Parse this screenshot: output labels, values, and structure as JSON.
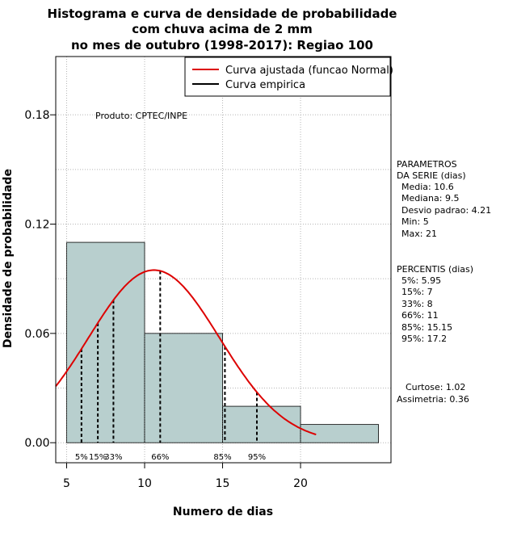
{
  "chart_data": {
    "type": "histogram",
    "title": [
      "Histograma e curva de densidade de probabilidade",
      "com chuva acima de 2 mm",
      "no mes de outubro (1998-2017): Regiao 100"
    ],
    "xlabel": "Numero de dias",
    "ylabel": "Densidade de probabilidade",
    "xlim": [
      4.3,
      25.8
    ],
    "ylim": [
      -0.011,
      0.212
    ],
    "xticks": [
      5,
      10,
      15,
      20
    ],
    "yticks": [
      0.0,
      0.06,
      0.12,
      0.18
    ],
    "ytick_labels": [
      "0.00",
      "0.06",
      "0.12",
      "0.18"
    ],
    "bins": [
      {
        "from": 5,
        "to": 10,
        "density": 0.11
      },
      {
        "from": 10,
        "to": 15,
        "density": 0.06
      },
      {
        "from": 15,
        "to": 20,
        "density": 0.02
      },
      {
        "from": 20,
        "to": 25,
        "density": 0.01
      }
    ],
    "bar_color": "#b8cfce",
    "curve_color": "#dd0000",
    "normal_fit": {
      "mean": 10.6,
      "sd": 4.21,
      "x_from": 4.3,
      "x_to": 21
    },
    "percentile_lines": [
      {
        "label": "5%",
        "x": 5.95
      },
      {
        "label": "15%",
        "x": 7
      },
      {
        "label": "33%",
        "x": 8
      },
      {
        "label": "66%",
        "x": 11
      },
      {
        "label": "85%",
        "x": 15.15
      },
      {
        "label": "95%",
        "x": 17.2
      }
    ],
    "percentile_axis_labels": [
      {
        "text": "5%",
        "x": 5.95
      },
      {
        "text": "15%",
        "x": 7.0
      },
      {
        "text": "33%",
        "x": 8.0
      },
      {
        "text": "66%",
        "x": 11.0
      },
      {
        "text": "85%",
        "x": 15.0
      },
      {
        "text": "95%",
        "x": 17.2
      }
    ],
    "legend": [
      {
        "label": "Curva ajustada (funcao Normal)",
        "color": "#dd0000"
      },
      {
        "label": "Curva empirica",
        "color": "#000000"
      }
    ],
    "annotation": "Produto: CPTEC/INPE"
  },
  "parametros": {
    "header": [
      "PARAMETROS",
      "DA SERIE (dias)"
    ],
    "lines": [
      "Media: 10.6",
      "Mediana: 9.5",
      "Desvio padrao: 4.21",
      "Min: 5",
      "Max: 21"
    ]
  },
  "percentis": {
    "header": "PERCENTIS (dias)",
    "lines": [
      "5%: 5.95",
      "15%: 7",
      "33%: 8",
      "66%: 11",
      "85%: 15.15",
      "95%: 17.2"
    ]
  },
  "curtose": "Curtose: 1.02",
  "assimetria": "Assimetria: 0.36"
}
